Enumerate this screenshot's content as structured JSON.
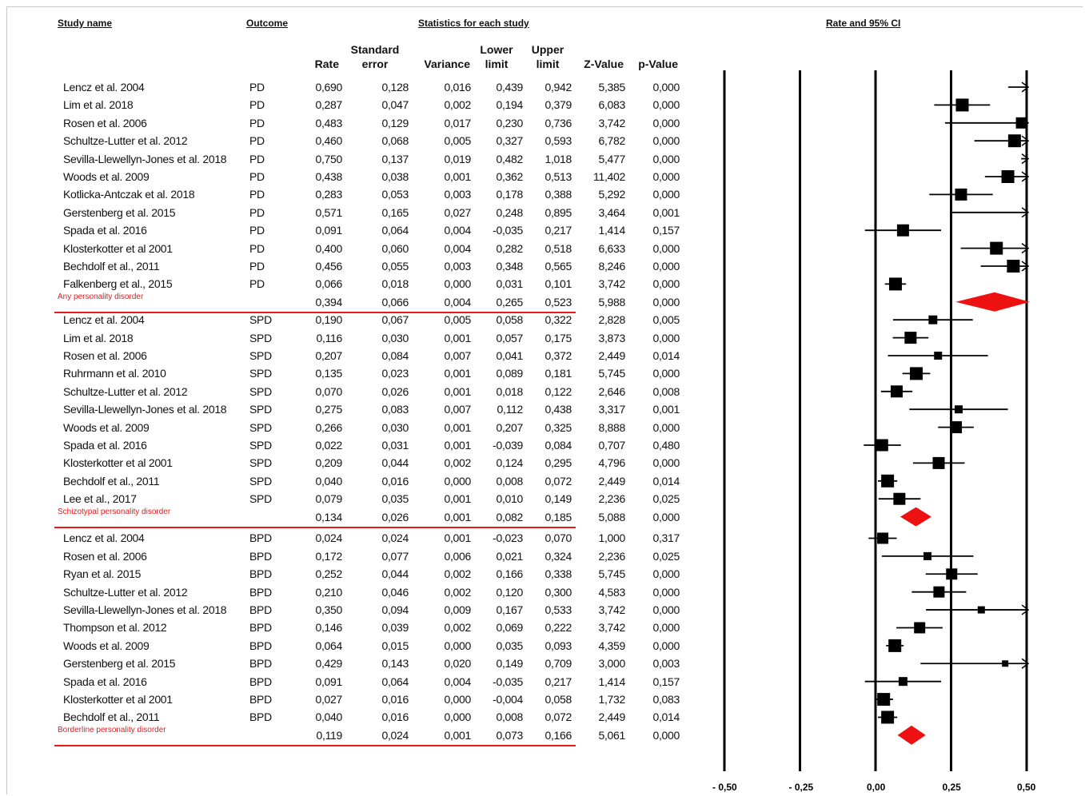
{
  "headers": {
    "study_name": "Study name",
    "outcome": "Outcome",
    "stats": "Statistics for each study",
    "rate_ci": "Rate and 95% CI"
  },
  "columns": {
    "rate": "Rate",
    "se1": "Standard",
    "se2": "error",
    "variance": "Variance",
    "lower1": "Lower",
    "lower2": "limit",
    "upper1": "Upper",
    "upper2": "limit",
    "z": "Z-Value",
    "p": "p-Value"
  },
  "chart_data": {
    "type": "forest",
    "x_axis": {
      "min": -0.5,
      "max": 0.5,
      "ticks": [
        -0.5,
        -0.25,
        0.0,
        0.25,
        0.5
      ],
      "tick_labels": [
        "- 0,50",
        "- 0,25",
        "0,00",
        "0,25",
        "0,50"
      ]
    },
    "groups": [
      {
        "label": "Any personality disorder",
        "rows": [
          {
            "study": "Lencz et al. 2004",
            "outcome": "PD",
            "rate": "0,690",
            "se": "0,128",
            "variance": "0,016",
            "lower": "0,439",
            "upper": "0,942",
            "z": "5,385",
            "p": "0,000",
            "r": 0.69,
            "lo": 0.439,
            "hi": 0.942,
            "w": 0
          },
          {
            "study": "Lim et al. 2018",
            "outcome": "PD",
            "rate": "0,287",
            "se": "0,047",
            "variance": "0,002",
            "lower": "0,194",
            "upper": "0,379",
            "z": "6,083",
            "p": "0,000",
            "r": 0.287,
            "lo": 0.194,
            "hi": 0.379,
            "w": 16
          },
          {
            "study": "Rosen et al. 2006",
            "outcome": "PD",
            "rate": "0,483",
            "se": "0,129",
            "variance": "0,017",
            "lower": "0,230",
            "upper": "0,736",
            "z": "3,742",
            "p": "0,000",
            "r": 0.483,
            "lo": 0.23,
            "hi": 0.736,
            "w": 14
          },
          {
            "study": "Schultze-Lutter et al. 2012",
            "outcome": "PD",
            "rate": "0,460",
            "se": "0,068",
            "variance": "0,005",
            "lower": "0,327",
            "upper": "0,593",
            "z": "6,782",
            "p": "0,000",
            "r": 0.46,
            "lo": 0.327,
            "hi": 0.593,
            "w": 16
          },
          {
            "study": "Sevilla-Llewellyn-Jones et al. 2018",
            "outcome": "PD",
            "rate": "0,750",
            "se": "0,137",
            "variance": "0,019",
            "lower": "0,482",
            "upper": "1,018",
            "z": "5,477",
            "p": "0,000",
            "r": 0.75,
            "lo": 0.482,
            "hi": 1.018,
            "w": 0
          },
          {
            "study": "Woods et al. 2009",
            "outcome": "PD",
            "rate": "0,438",
            "se": "0,038",
            "variance": "0,001",
            "lower": "0,362",
            "upper": "0,513",
            "z": "11,402",
            "p": "0,000",
            "r": 0.438,
            "lo": 0.362,
            "hi": 0.513,
            "w": 16
          },
          {
            "study": "Kotlicka-Antczak et al. 2018",
            "outcome": "PD",
            "rate": "0,283",
            "se": "0,053",
            "variance": "0,003",
            "lower": "0,178",
            "upper": "0,388",
            "z": "5,292",
            "p": "0,000",
            "r": 0.283,
            "lo": 0.178,
            "hi": 0.388,
            "w": 15
          },
          {
            "study": "Gerstenberg et al. 2015",
            "outcome": "PD",
            "rate": "0,571",
            "se": "0,165",
            "variance": "0,027",
            "lower": "0,248",
            "upper": "0,895",
            "z": "3,464",
            "p": "0,001",
            "r": 0.571,
            "lo": 0.248,
            "hi": 0.895,
            "w": 0
          },
          {
            "study": "Spada et al. 2016",
            "outcome": "PD",
            "rate": "0,091",
            "se": "0,064",
            "variance": "0,004",
            "lower": "-0,035",
            "upper": "0,217",
            "z": "1,414",
            "p": "0,157",
            "r": 0.091,
            "lo": -0.035,
            "hi": 0.217,
            "w": 15
          },
          {
            "study": "Klosterkotter et al 2001",
            "outcome": "PD",
            "rate": "0,400",
            "se": "0,060",
            "variance": "0,004",
            "lower": "0,282",
            "upper": "0,518",
            "z": "6,633",
            "p": "0,000",
            "r": 0.4,
            "lo": 0.282,
            "hi": 0.518,
            "w": 16
          },
          {
            "study": "Bechdolf et al., 2011",
            "outcome": "PD",
            "rate": "0,456",
            "se": "0,055",
            "variance": "0,003",
            "lower": "0,348",
            "upper": "0,565",
            "z": "8,246",
            "p": "0,000",
            "r": 0.456,
            "lo": 0.348,
            "hi": 0.565,
            "w": 16
          },
          {
            "study": "Falkenberg et al., 2015",
            "outcome": "PD",
            "rate": "0,066",
            "se": "0,018",
            "variance": "0,000",
            "lower": "0,031",
            "upper": "0,101",
            "z": "3,742",
            "p": "0,000",
            "r": 0.066,
            "lo": 0.031,
            "hi": 0.101,
            "w": 16
          }
        ],
        "summary": {
          "rate": "0,394",
          "se": "0,066",
          "variance": "0,004",
          "lower": "0,265",
          "upper": "0,523",
          "z": "5,988",
          "p": "0,000",
          "r": 0.394,
          "lo": 0.265,
          "hi": 0.523
        }
      },
      {
        "label": "Schizotypal personality disorder",
        "rows": [
          {
            "study": "Lencz et al. 2004",
            "outcome": "SPD",
            "rate": "0,190",
            "se": "0,067",
            "variance": "0,005",
            "lower": "0,058",
            "upper": "0,322",
            "z": "2,828",
            "p": "0,005",
            "r": 0.19,
            "lo": 0.058,
            "hi": 0.322,
            "w": 11
          },
          {
            "study": "Lim et al. 2018",
            "outcome": "SPD",
            "rate": "0,116",
            "se": "0,030",
            "variance": "0,001",
            "lower": "0,057",
            "upper": "0,175",
            "z": "3,873",
            "p": "0,000",
            "r": 0.116,
            "lo": 0.057,
            "hi": 0.175,
            "w": 15
          },
          {
            "study": "Rosen et al. 2006",
            "outcome": "SPD",
            "rate": "0,207",
            "se": "0,084",
            "variance": "0,007",
            "lower": "0,041",
            "upper": "0,372",
            "z": "2,449",
            "p": "0,014",
            "r": 0.207,
            "lo": 0.041,
            "hi": 0.372,
            "w": 10
          },
          {
            "study": "Ruhrmann et al. 2010",
            "outcome": "SPD",
            "rate": "0,135",
            "se": "0,023",
            "variance": "0,001",
            "lower": "0,089",
            "upper": "0,181",
            "z": "5,745",
            "p": "0,000",
            "r": 0.135,
            "lo": 0.089,
            "hi": 0.181,
            "w": 16
          },
          {
            "study": "Schultze-Lutter et al. 2012",
            "outcome": "SPD",
            "rate": "0,070",
            "se": "0,026",
            "variance": "0,001",
            "lower": "0,018",
            "upper": "0,122",
            "z": "2,646",
            "p": "0,008",
            "r": 0.07,
            "lo": 0.018,
            "hi": 0.122,
            "w": 15
          },
          {
            "study": "Sevilla-Llewellyn-Jones et al. 2018",
            "outcome": "SPD",
            "rate": "0,275",
            "se": "0,083",
            "variance": "0,007",
            "lower": "0,112",
            "upper": "0,438",
            "z": "3,317",
            "p": "0,001",
            "r": 0.275,
            "lo": 0.112,
            "hi": 0.438,
            "w": 10
          },
          {
            "study": "Woods et al. 2009",
            "outcome": "SPD",
            "rate": "0,266",
            "se": "0,030",
            "variance": "0,001",
            "lower": "0,207",
            "upper": "0,325",
            "z": "8,888",
            "p": "0,000",
            "r": 0.266,
            "lo": 0.207,
            "hi": 0.325,
            "w": 15
          },
          {
            "study": "Spada et al. 2016",
            "outcome": "SPD",
            "rate": "0,022",
            "se": "0,031",
            "variance": "0,001",
            "lower": "-0,039",
            "upper": "0,084",
            "z": "0,707",
            "p": "0,480",
            "r": 0.022,
            "lo": -0.039,
            "hi": 0.084,
            "w": 15
          },
          {
            "study": "Klosterkotter et al 2001",
            "outcome": "SPD",
            "rate": "0,209",
            "se": "0,044",
            "variance": "0,002",
            "lower": "0,124",
            "upper": "0,295",
            "z": "4,796",
            "p": "0,000",
            "r": 0.209,
            "lo": 0.124,
            "hi": 0.295,
            "w": 15
          },
          {
            "study": "Bechdolf et al., 2011",
            "outcome": "SPD",
            "rate": "0,040",
            "se": "0,016",
            "variance": "0,000",
            "lower": "0,008",
            "upper": "0,072",
            "z": "2,449",
            "p": "0,014",
            "r": 0.04,
            "lo": 0.008,
            "hi": 0.072,
            "w": 16
          },
          {
            "study": "Lee et al., 2017",
            "outcome": "SPD",
            "rate": "0,079",
            "se": "0,035",
            "variance": "0,001",
            "lower": "0,010",
            "upper": "0,149",
            "z": "2,236",
            "p": "0,025",
            "r": 0.079,
            "lo": 0.01,
            "hi": 0.149,
            "w": 15
          }
        ],
        "summary": {
          "rate": "0,134",
          "se": "0,026",
          "variance": "0,001",
          "lower": "0,082",
          "upper": "0,185",
          "z": "5,088",
          "p": "0,000",
          "r": 0.134,
          "lo": 0.082,
          "hi": 0.185
        }
      },
      {
        "label": "Borderline personality disorder",
        "rows": [
          {
            "study": "Lencz et al. 2004",
            "outcome": "BPD",
            "rate": "0,024",
            "se": "0,024",
            "variance": "0,001",
            "lower": "-0,023",
            "upper": "0,070",
            "z": "1,000",
            "p": "0,317",
            "r": 0.024,
            "lo": -0.023,
            "hi": 0.07,
            "w": 14
          },
          {
            "study": "Rosen et al. 2006",
            "outcome": "BPD",
            "rate": "0,172",
            "se": "0,077",
            "variance": "0,006",
            "lower": "0,021",
            "upper": "0,324",
            "z": "2,236",
            "p": "0,025",
            "r": 0.172,
            "lo": 0.021,
            "hi": 0.324,
            "w": 10
          },
          {
            "study": "Ryan et al. 2015",
            "outcome": "BPD",
            "rate": "0,252",
            "se": "0,044",
            "variance": "0,002",
            "lower": "0,166",
            "upper": "0,338",
            "z": "5,745",
            "p": "0,000",
            "r": 0.252,
            "lo": 0.166,
            "hi": 0.338,
            "w": 14
          },
          {
            "study": "Schultze-Lutter et al. 2012",
            "outcome": "BPD",
            "rate": "0,210",
            "se": "0,046",
            "variance": "0,002",
            "lower": "0,120",
            "upper": "0,300",
            "z": "4,583",
            "p": "0,000",
            "r": 0.21,
            "lo": 0.12,
            "hi": 0.3,
            "w": 14
          },
          {
            "study": "Sevilla-Llewellyn-Jones et al. 2018",
            "outcome": "BPD",
            "rate": "0,350",
            "se": "0,094",
            "variance": "0,009",
            "lower": "0,167",
            "upper": "0,533",
            "z": "3,742",
            "p": "0,000",
            "r": 0.35,
            "lo": 0.167,
            "hi": 0.533,
            "w": 9
          },
          {
            "study": "Thompson et al. 2012",
            "outcome": "BPD",
            "rate": "0,146",
            "se": "0,039",
            "variance": "0,002",
            "lower": "0,069",
            "upper": "0,222",
            "z": "3,742",
            "p": "0,000",
            "r": 0.146,
            "lo": 0.069,
            "hi": 0.222,
            "w": 14
          },
          {
            "study": "Woods et al. 2009",
            "outcome": "BPD",
            "rate": "0,064",
            "se": "0,015",
            "variance": "0,000",
            "lower": "0,035",
            "upper": "0,093",
            "z": "4,359",
            "p": "0,000",
            "r": 0.064,
            "lo": 0.035,
            "hi": 0.093,
            "w": 16
          },
          {
            "study": "Gerstenberg et al. 2015",
            "outcome": "BPD",
            "rate": "0,429",
            "se": "0,143",
            "variance": "0,020",
            "lower": "0,149",
            "upper": "0,709",
            "z": "3,000",
            "p": "0,003",
            "r": 0.429,
            "lo": 0.149,
            "hi": 0.709,
            "w": 8
          },
          {
            "study": "Spada et al. 2016",
            "outcome": "BPD",
            "rate": "0,091",
            "se": "0,064",
            "variance": "0,004",
            "lower": "-0,035",
            "upper": "0,217",
            "z": "1,414",
            "p": "0,157",
            "r": 0.091,
            "lo": -0.035,
            "hi": 0.217,
            "w": 11
          },
          {
            "study": "Klosterkotter et al 2001",
            "outcome": "BPD",
            "rate": "0,027",
            "se": "0,016",
            "variance": "0,000",
            "lower": "-0,004",
            "upper": "0,058",
            "z": "1,732",
            "p": "0,083",
            "r": 0.027,
            "lo": -0.004,
            "hi": 0.058,
            "w": 16
          },
          {
            "study": "Bechdolf et al., 2011",
            "outcome": "BPD",
            "rate": "0,040",
            "se": "0,016",
            "variance": "0,000",
            "lower": "0,008",
            "upper": "0,072",
            "z": "2,449",
            "p": "0,014",
            "r": 0.04,
            "lo": 0.008,
            "hi": 0.072,
            "w": 16
          }
        ],
        "summary": {
          "rate": "0,119",
          "se": "0,024",
          "variance": "0,001",
          "lower": "0,073",
          "upper": "0,166",
          "z": "5,061",
          "p": "0,000",
          "r": 0.119,
          "lo": 0.073,
          "hi": 0.166
        }
      }
    ]
  },
  "colors": {
    "summary_diamond": "#ee1111",
    "separator": "#e41a1c",
    "subgroup_label": "#e41a1c"
  }
}
